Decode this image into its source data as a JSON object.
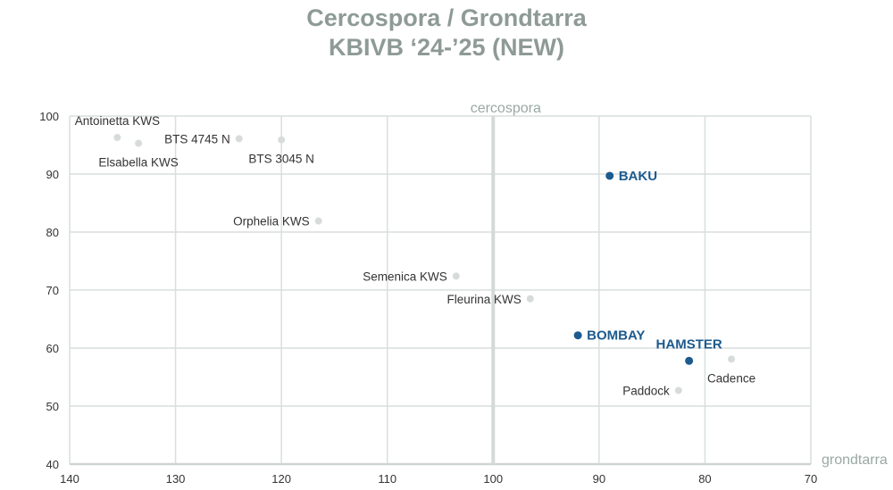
{
  "title_line1": "Cercospora / Grondtarra",
  "title_line2": "KBIVB ‘24-’25 (NEW)",
  "chart_data": {
    "type": "scatter",
    "xlabel": "grondtarra",
    "ylabel": "cercospora",
    "xlim": [
      140,
      70
    ],
    "ylim": [
      40,
      100
    ],
    "x_ticks": [
      "140",
      "130",
      "120",
      "110",
      "100",
      "90",
      "80",
      "70"
    ],
    "y_ticks": [
      "40",
      "50",
      "60",
      "70",
      "80",
      "90",
      "100"
    ],
    "reference_lines": {
      "x": 100
    },
    "grid": true,
    "colors": {
      "highlight": "#1d5a8e",
      "normal": "#d7dcda",
      "grid": "#d9dedd",
      "axis": "#cfd5d3",
      "reference": "#d4dad8"
    },
    "points": [
      {
        "label": "Antoinetta KWS",
        "x": 135.5,
        "y": 96.3,
        "highlight": false,
        "label_pos": "above"
      },
      {
        "label": "Elsabella KWS",
        "x": 133.5,
        "y": 95.3,
        "highlight": false,
        "label_pos": "below"
      },
      {
        "label": "BTS 4745 N",
        "x": 124.0,
        "y": 96.1,
        "highlight": false,
        "label_pos": "left"
      },
      {
        "label": "BTS 3045 N",
        "x": 120.0,
        "y": 95.9,
        "highlight": false,
        "label_pos": "below"
      },
      {
        "label": "Orphelia KWS",
        "x": 116.5,
        "y": 81.9,
        "highlight": false,
        "label_pos": "left"
      },
      {
        "label": "Semenica KWS",
        "x": 103.5,
        "y": 72.4,
        "highlight": false,
        "label_pos": "left"
      },
      {
        "label": "Fleurina KWS",
        "x": 96.5,
        "y": 68.5,
        "highlight": false,
        "label_pos": "left"
      },
      {
        "label": "BAKU",
        "x": 89.0,
        "y": 89.7,
        "highlight": true,
        "label_pos": "right"
      },
      {
        "label": "BOMBAY",
        "x": 92.0,
        "y": 62.2,
        "highlight": true,
        "label_pos": "right"
      },
      {
        "label": "HAMSTER",
        "x": 81.5,
        "y": 57.8,
        "highlight": true,
        "label_pos": "above"
      },
      {
        "label": "Cadence",
        "x": 77.5,
        "y": 58.1,
        "highlight": false,
        "label_pos": "below"
      },
      {
        "label": "Paddock",
        "x": 82.5,
        "y": 52.7,
        "highlight": false,
        "label_pos": "left"
      }
    ]
  }
}
